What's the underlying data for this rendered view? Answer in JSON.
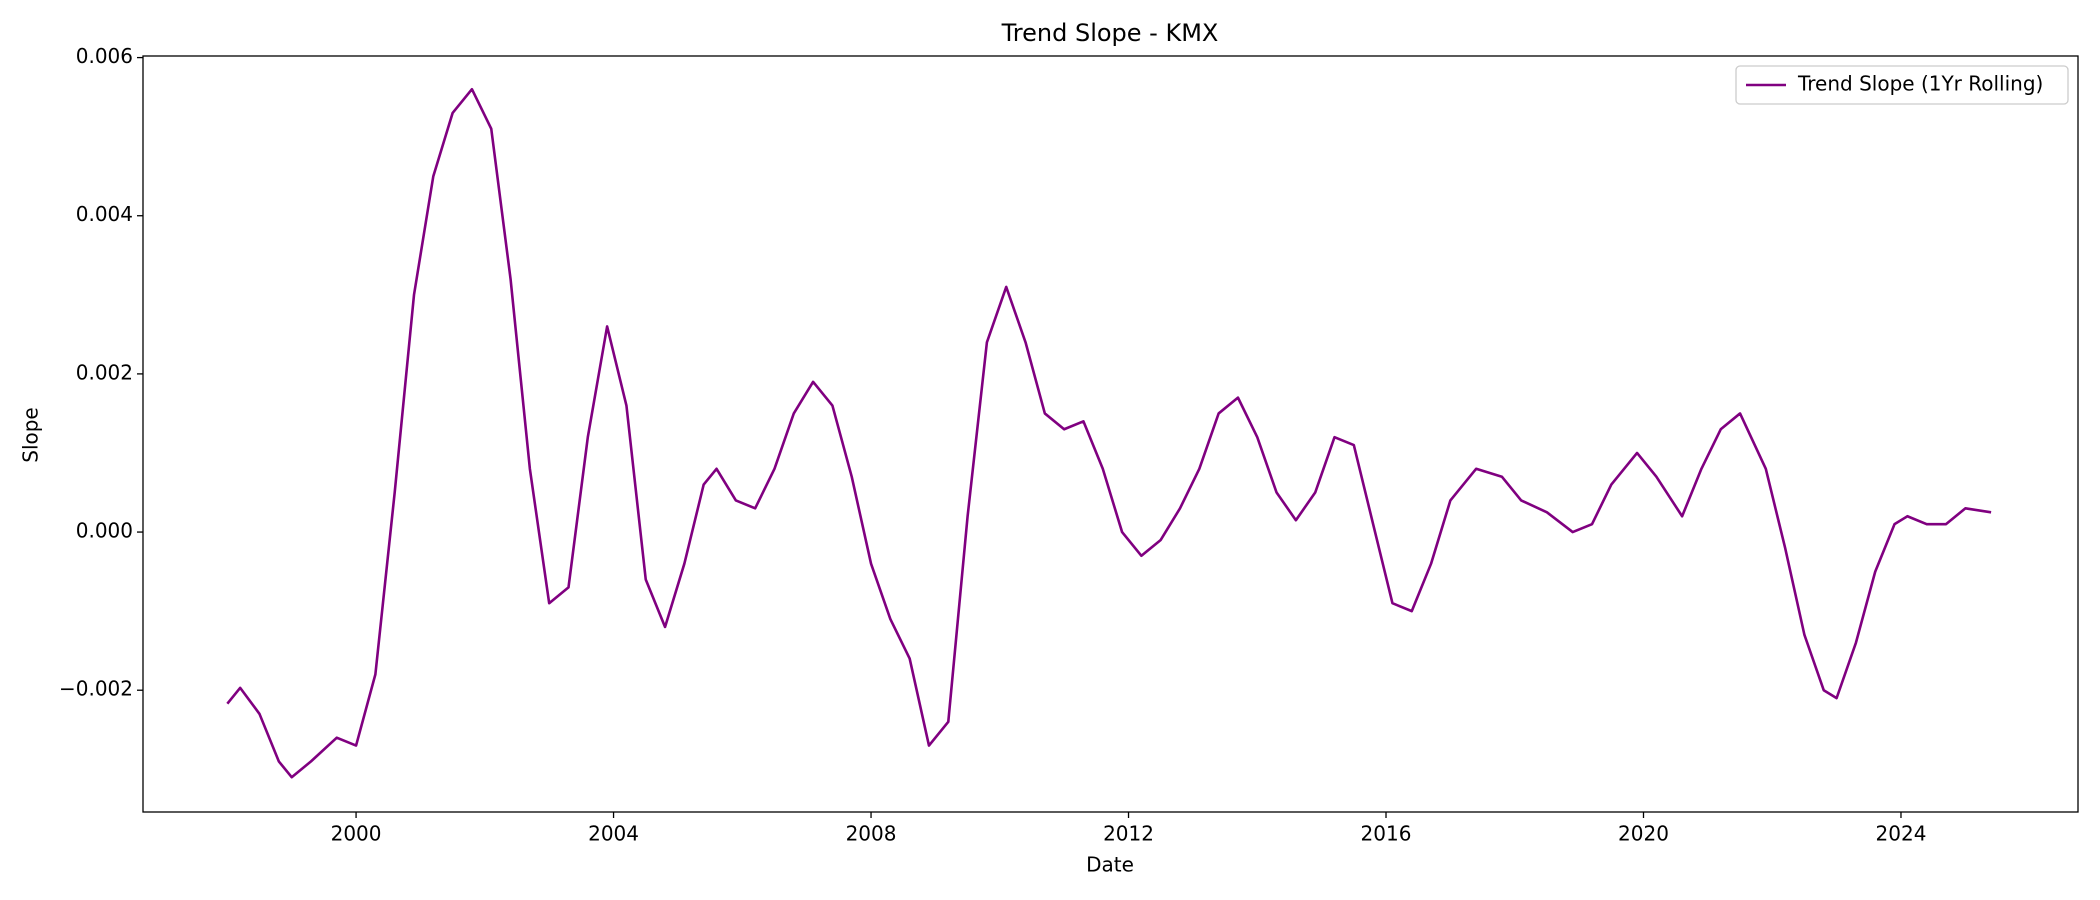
{
  "chart_data": {
    "type": "line",
    "title": "Trend Slope - KMX",
    "x_label": "Date",
    "y_label": "Slope",
    "x": [
      1998.0,
      1998.2,
      1998.5,
      1998.8,
      1999.0,
      1999.3,
      1999.7,
      2000.0,
      2000.3,
      2000.6,
      2000.9,
      2001.2,
      2001.5,
      2001.8,
      2002.1,
      2002.4,
      2002.7,
      2003.0,
      2003.3,
      2003.6,
      2003.9,
      2004.2,
      2004.5,
      2004.8,
      2005.1,
      2005.4,
      2005.6,
      2005.9,
      2006.2,
      2006.5,
      2006.8,
      2007.1,
      2007.4,
      2007.7,
      2008.0,
      2008.3,
      2008.6,
      2008.9,
      2009.2,
      2009.5,
      2009.8,
      2010.1,
      2010.4,
      2010.7,
      2011.0,
      2011.3,
      2011.6,
      2011.9,
      2012.2,
      2012.5,
      2012.8,
      2013.1,
      2013.4,
      2013.7,
      2014.0,
      2014.3,
      2014.6,
      2014.9,
      2015.2,
      2015.5,
      2015.8,
      2016.1,
      2016.4,
      2016.7,
      2017.0,
      2017.4,
      2017.8,
      2018.1,
      2018.5,
      2018.9,
      2019.2,
      2019.5,
      2019.9,
      2020.2,
      2020.6,
      2020.9,
      2021.2,
      2021.5,
      2021.9,
      2022.2,
      2022.5,
      2022.8,
      2023.0,
      2023.3,
      2023.6,
      2023.9,
      2024.1,
      2024.4,
      2024.7,
      2025.0,
      2025.4
    ],
    "series": [
      {
        "name": "Trend Slope (1Yr Rolling)",
        "color": "#800080",
        "values": [
          -0.00217,
          -0.00197,
          -0.0023,
          -0.0029,
          -0.0031,
          -0.0029,
          -0.0026,
          -0.0027,
          -0.0018,
          0.0005,
          0.003,
          0.0045,
          0.0053,
          0.0056,
          0.0051,
          0.0032,
          0.0008,
          -0.0009,
          -0.0007,
          0.0012,
          0.0026,
          0.0016,
          -0.0006,
          -0.0012,
          -0.0004,
          0.0006,
          0.0008,
          0.0004,
          0.0003,
          0.0008,
          0.0015,
          0.0019,
          0.0016,
          0.0007,
          -0.0004,
          -0.0011,
          -0.0016,
          -0.0027,
          -0.0024,
          0.0002,
          0.0024,
          0.0031,
          0.0024,
          0.0015,
          0.0013,
          0.0014,
          0.0008,
          0.0,
          -0.0003,
          -0.0001,
          0.0003,
          0.0008,
          0.0015,
          0.0017,
          0.0012,
          0.0005,
          0.00015,
          0.0005,
          0.0012,
          0.0011,
          0.0001,
          -0.0009,
          -0.001,
          -0.0004,
          0.0004,
          0.0008,
          0.0007,
          0.0004,
          0.00025,
          0.0,
          0.0001,
          0.0006,
          0.001,
          0.0007,
          0.0002,
          0.0008,
          0.0013,
          0.0015,
          0.0008,
          -0.0002,
          -0.0013,
          -0.002,
          -0.0021,
          -0.0014,
          -0.0005,
          0.0001,
          0.0002,
          0.0001,
          0.0001,
          0.0003,
          0.00025
        ]
      }
    ],
    "xlim": [
      1996.69,
      2026.75
    ],
    "xticks": [
      2000,
      2004,
      2008,
      2012,
      2016,
      2020,
      2024
    ],
    "ylim": [
      -0.00354,
      0.00602
    ],
    "yticks": [
      {
        "value": -0.002,
        "label": "−0.002"
      },
      {
        "value": 0,
        "label": "0.000"
      },
      0.002,
      0.004,
      0.006
    ],
    "legend": "upper right",
    "grid": false
  }
}
